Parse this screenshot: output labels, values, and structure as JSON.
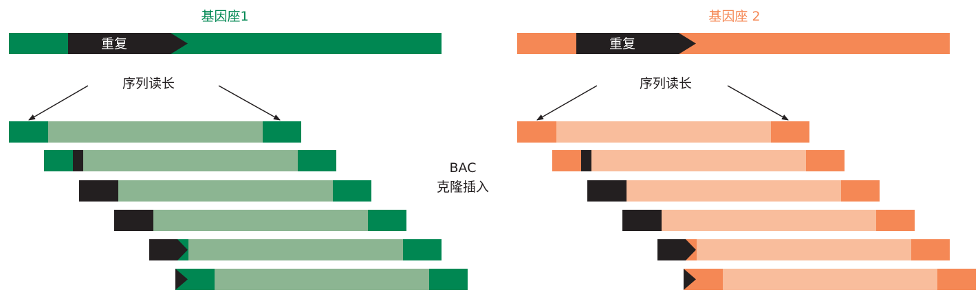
{
  "locus1": {
    "title": "基因座1",
    "repeat_label": "重复",
    "reads_label": "序列读长",
    "colors": {
      "main": "#008752",
      "light": "#8cb592",
      "repeat": "#231f20"
    }
  },
  "locus2": {
    "title": "基因座 2",
    "repeat_label": "重复",
    "reads_label": "序列读长",
    "colors": {
      "main": "#f58855",
      "light": "#f9bd9c",
      "repeat": "#231f20"
    }
  },
  "insert_label": {
    "line1": "BAC",
    "line2": "克隆插入"
  }
}
